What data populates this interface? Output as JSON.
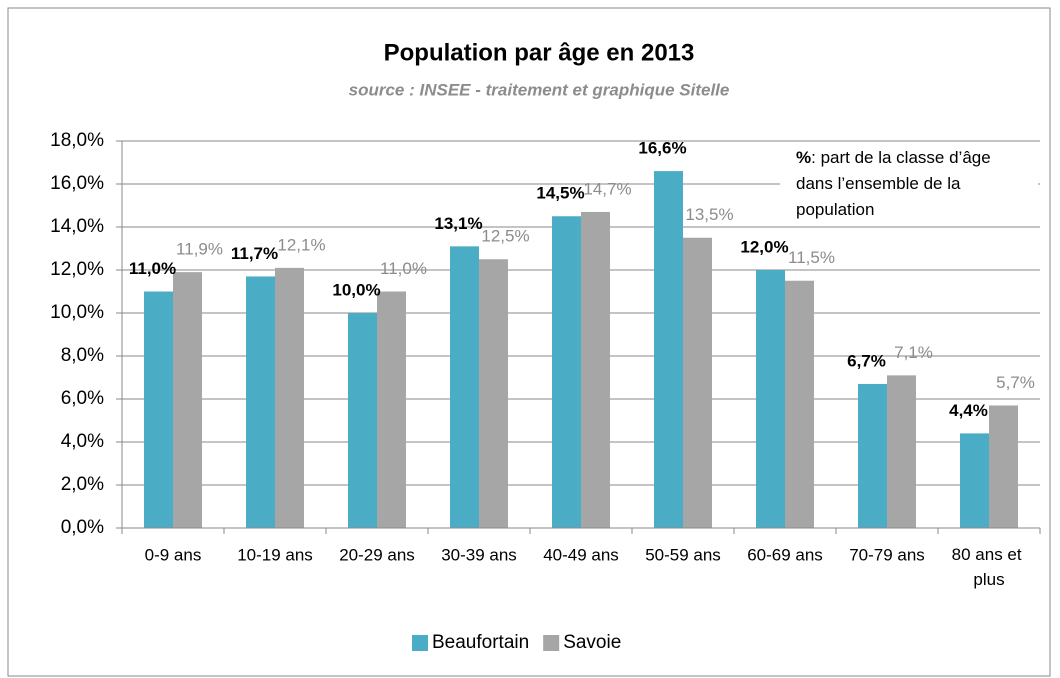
{
  "chart_data": {
    "type": "bar",
    "title": "Population par âge en 2013",
    "subtitle": "source : INSEE - traitement et graphique  Sitelle",
    "annotation_bold": "%",
    "annotation_lines": [
      ": part de la classe d’âge",
      "dans l’ensemble de la",
      "population"
    ],
    "categories": [
      "0-9 ans",
      "10-19 ans",
      "20-29 ans",
      "30-39 ans",
      "40-49 ans",
      "50-59 ans",
      "60-69 ans",
      "70-79 ans",
      "80 ans et plus"
    ],
    "series": [
      {
        "name": "Beaufortain",
        "color": "#4bacc6",
        "values": [
          11.0,
          11.7,
          10.0,
          13.1,
          14.5,
          16.6,
          12.0,
          6.7,
          4.4
        ],
        "value_labels": [
          "11,0%",
          "11,7%",
          "10,0%",
          "13,1%",
          "14,5%",
          "16,6%",
          "12,0%",
          "6,7%",
          "4,4%"
        ]
      },
      {
        "name": "Savoie",
        "color": "#a6a6a6",
        "values": [
          11.9,
          12.1,
          11.0,
          12.5,
          14.7,
          13.5,
          11.5,
          7.1,
          5.7
        ],
        "value_labels": [
          "11,9%",
          "12,1%",
          "11,0%",
          "12,5%",
          "14,7%",
          "13,5%",
          "11,5%",
          "7,1%",
          "5,7%"
        ]
      }
    ],
    "ylim": [
      0,
      18
    ],
    "yticks": [
      {
        "value": 0,
        "label": "0,0%"
      },
      {
        "value": 2,
        "label": "2,0%"
      },
      {
        "value": 4,
        "label": "4,0%"
      },
      {
        "value": 6,
        "label": "6,0%"
      },
      {
        "value": 8,
        "label": "8,0%"
      },
      {
        "value": 10,
        "label": "10,0%"
      },
      {
        "value": 12,
        "label": "12,0%"
      },
      {
        "value": 14,
        "label": "14,0%"
      },
      {
        "value": 16,
        "label": "16,0%"
      },
      {
        "value": 18,
        "label": "18,0%"
      }
    ],
    "grid": true,
    "legend": "bottom"
  }
}
